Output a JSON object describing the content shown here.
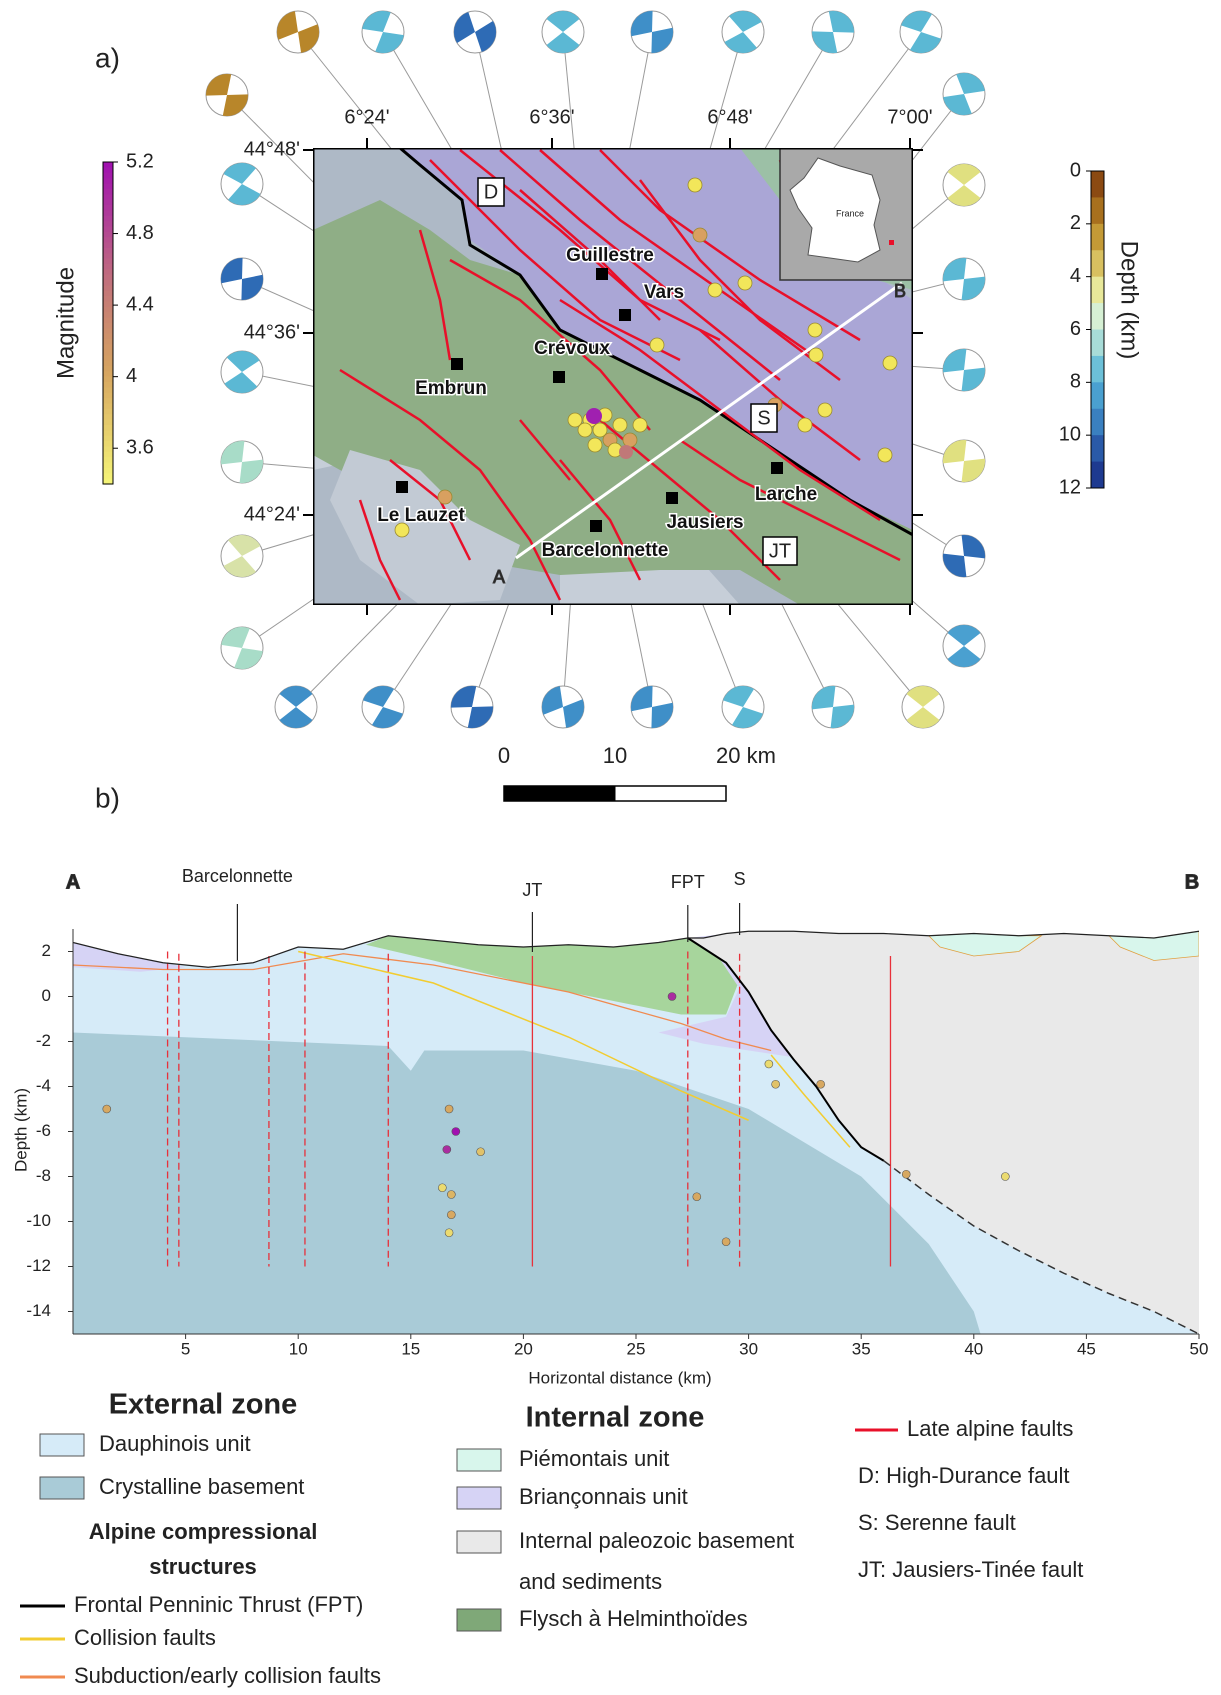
{
  "panel_a": {
    "label": "a)",
    "lon_ticks": [
      "6°24'",
      "6°36'",
      "6°48'",
      "7°00'"
    ],
    "lat_ticks": [
      "44°48'",
      "44°36'",
      "44°24'"
    ],
    "places": [
      "Guillestre",
      "Vars",
      "Crévoux",
      "Embrun",
      "Le Lauzet",
      "Jausiers",
      "Barcelonnette",
      "Larche"
    ],
    "fault_labels": [
      "D",
      "S",
      "JT"
    ],
    "profile_ends": [
      "A",
      "B"
    ],
    "inset_label": "France",
    "magnitude_bar": {
      "title": "Magnitude",
      "lim": [
        3.4,
        5.2
      ],
      "ticks": [
        3.6,
        4,
        4.4,
        4.8,
        5.2
      ]
    },
    "depth_bar": {
      "title": "Depth (km)",
      "lim": [
        0,
        12
      ],
      "ticks": [
        0,
        2,
        4,
        6,
        8,
        10,
        12
      ]
    },
    "scale_bar": {
      "lim": [
        0,
        20
      ],
      "ticks": [
        0,
        10,
        {
          "value": 20,
          "label": "20 km"
        }
      ]
    }
  },
  "panel_b": {
    "label": "b)",
    "x_label": "Horizontal distance (km)",
    "y_label": "Depth (km)",
    "xlim": [
      0,
      50
    ],
    "ylim": [
      -15,
      3
    ],
    "xticks": [
      5,
      10,
      15,
      20,
      25,
      30,
      35,
      40,
      45,
      50
    ],
    "yticks": [
      2,
      0,
      -2,
      -4,
      -6,
      -8,
      -10,
      -12,
      -14
    ],
    "annotations": [
      "A",
      "B",
      "Barcelonnette",
      "JT",
      "FPT",
      "S"
    ],
    "events": {
      "x": [
        1.5,
        16.7,
        17,
        16.6,
        18.1,
        16.4,
        16.8,
        16.8,
        16.7,
        26.6,
        27.7,
        29,
        30.9,
        31.2,
        33.2,
        37,
        41.4
      ],
      "y": [
        -5,
        -5,
        -6,
        -6.8,
        -6.9,
        -8.5,
        -8.8,
        -9.7,
        -10.5,
        0,
        -8.9,
        -10.9,
        -3,
        -3.9,
        -3.9,
        -7.9,
        -8
      ],
      "magnitude": [
        4,
        4,
        5.2,
        5,
        3.8,
        3.6,
        3.9,
        4,
        3.6,
        5,
        4,
        4,
        3.6,
        3.8,
        4,
        4,
        3.6
      ]
    }
  },
  "legend": {
    "external": {
      "title": "External zone",
      "items": [
        "Dauphinois unit",
        "Crystalline basement"
      ]
    },
    "structures": {
      "title": [
        "Alpine compressional",
        "structures"
      ],
      "items": [
        "Frontal Penninic Thrust (FPT)",
        "Collision faults",
        "Subduction/early collision faults"
      ]
    },
    "internal": {
      "title": "Internal zone",
      "items": [
        "Piémontais unit",
        "Briançonnais unit",
        "Internal paleozoic basement",
        "and sediments",
        "Flysch à Helminthoïdes"
      ]
    },
    "faults": [
      "Late alpine faults",
      "D: High-Durance fault",
      "S: Serenne fault",
      "JT: Jausiers-Tinée fault"
    ]
  }
}
